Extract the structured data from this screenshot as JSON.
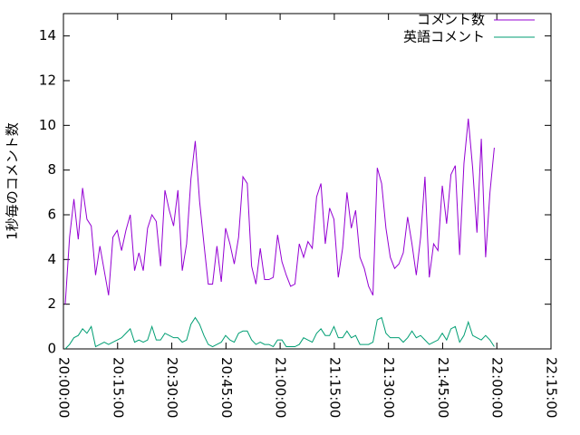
{
  "chart_data": {
    "type": "line",
    "ylabel": "1秒毎のコメント数",
    "x": [
      "20:00:30",
      "20:01:42",
      "20:02:54",
      "20:04:06",
      "20:05:18",
      "20:06:30",
      "20:07:42",
      "20:08:54",
      "20:10:06",
      "20:11:18",
      "20:12:30",
      "20:13:42",
      "20:14:54",
      "20:16:06",
      "20:17:18",
      "20:18:30",
      "20:19:42",
      "20:20:54",
      "20:22:06",
      "20:23:18",
      "20:24:30",
      "20:25:42",
      "20:26:54",
      "20:28:06",
      "20:29:18",
      "20:30:30",
      "20:31:42",
      "20:32:54",
      "20:34:06",
      "20:35:18",
      "20:36:30",
      "20:37:42",
      "20:38:54",
      "20:40:06",
      "20:41:18",
      "20:42:30",
      "20:43:42",
      "20:44:54",
      "20:46:06",
      "20:47:18",
      "20:48:30",
      "20:49:42",
      "20:50:54",
      "20:52:06",
      "20:53:18",
      "20:54:30",
      "20:55:42",
      "20:56:54",
      "20:58:06",
      "20:59:18",
      "21:00:30",
      "21:01:42",
      "21:02:54",
      "21:04:06",
      "21:05:18",
      "21:06:30",
      "21:07:42",
      "21:08:54",
      "21:10:06",
      "21:11:18",
      "21:12:30",
      "21:13:42",
      "21:14:54",
      "21:16:06",
      "21:17:18",
      "21:18:30",
      "21:19:42",
      "21:20:54",
      "21:22:06",
      "21:23:18",
      "21:24:30",
      "21:25:42",
      "21:26:54",
      "21:28:06",
      "21:29:18",
      "21:30:30",
      "21:31:42",
      "21:32:54",
      "21:34:06",
      "21:35:18",
      "21:36:30",
      "21:37:42",
      "21:38:54",
      "21:40:06",
      "21:41:18",
      "21:42:30",
      "21:43:42",
      "21:44:54",
      "21:46:06",
      "21:47:18",
      "21:48:30",
      "21:49:42",
      "21:50:54",
      "21:52:06",
      "21:53:18",
      "21:54:30",
      "21:55:42",
      "21:56:54",
      "21:58:06",
      "21:59:18"
    ],
    "series": [
      {
        "name": "コメント数",
        "color": "#9400d3",
        "values": [
          2.0,
          5.0,
          6.7,
          4.9,
          7.2,
          5.8,
          5.5,
          3.3,
          4.6,
          3.5,
          2.4,
          5.0,
          5.3,
          4.4,
          5.3,
          6.0,
          3.5,
          4.3,
          3.5,
          5.4,
          6.0,
          5.7,
          3.7,
          7.1,
          6.2,
          5.5,
          7.1,
          3.5,
          4.7,
          7.6,
          9.3,
          6.6,
          4.7,
          2.9,
          2.9,
          4.6,
          3.0,
          5.4,
          4.7,
          3.8,
          5.0,
          7.7,
          7.4,
          3.7,
          2.9,
          4.5,
          3.1,
          3.1,
          3.2,
          5.1,
          3.9,
          3.3,
          2.8,
          2.9,
          4.7,
          4.1,
          4.8,
          4.5,
          6.8,
          7.4,
          4.7,
          6.3,
          5.8,
          3.2,
          4.5,
          7.0,
          5.4,
          6.2,
          4.1,
          3.6,
          2.8,
          2.4,
          8.1,
          7.4,
          5.4,
          4.1,
          3.6,
          3.8,
          4.3,
          5.9,
          4.7,
          3.3,
          5.0,
          7.7,
          3.2,
          4.7,
          4.4,
          7.3,
          5.6,
          7.8,
          8.2,
          4.2,
          8.3,
          10.3,
          8.1,
          5.2,
          9.4,
          4.1,
          7.0,
          9.0
        ]
      },
      {
        "name": "英語コメント",
        "color": "#009e73",
        "values": [
          0.0,
          0.2,
          0.5,
          0.6,
          0.9,
          0.7,
          1.0,
          0.1,
          0.2,
          0.3,
          0.2,
          0.3,
          0.4,
          0.5,
          0.7,
          0.9,
          0.3,
          0.4,
          0.3,
          0.4,
          1.0,
          0.4,
          0.4,
          0.7,
          0.6,
          0.5,
          0.5,
          0.3,
          0.4,
          1.1,
          1.4,
          1.1,
          0.6,
          0.2,
          0.1,
          0.2,
          0.3,
          0.6,
          0.4,
          0.3,
          0.7,
          0.8,
          0.8,
          0.4,
          0.2,
          0.3,
          0.2,
          0.2,
          0.1,
          0.4,
          0.4,
          0.1,
          0.1,
          0.1,
          0.2,
          0.5,
          0.4,
          0.3,
          0.7,
          0.9,
          0.6,
          0.6,
          1.0,
          0.5,
          0.5,
          0.8,
          0.5,
          0.6,
          0.2,
          0.2,
          0.2,
          0.3,
          1.3,
          1.4,
          0.7,
          0.5,
          0.5,
          0.5,
          0.3,
          0.5,
          0.8,
          0.5,
          0.6,
          0.4,
          0.2,
          0.3,
          0.4,
          0.7,
          0.4,
          0.9,
          1.0,
          0.3,
          0.6,
          1.2,
          0.6,
          0.5,
          0.4,
          0.6,
          0.4,
          0.1
        ]
      }
    ],
    "xlim": [
      "20:00:00",
      "22:15:00"
    ],
    "xticks": [
      "20:00:00",
      "20:15:00",
      "20:30:00",
      "20:45:00",
      "21:00:00",
      "21:15:00",
      "21:30:00",
      "21:45:00",
      "22:00:00",
      "22:15:00"
    ],
    "ylim": [
      0,
      15
    ],
    "yticks": [
      0,
      2,
      4,
      6,
      8,
      10,
      12,
      14
    ],
    "legend": "top-right"
  }
}
